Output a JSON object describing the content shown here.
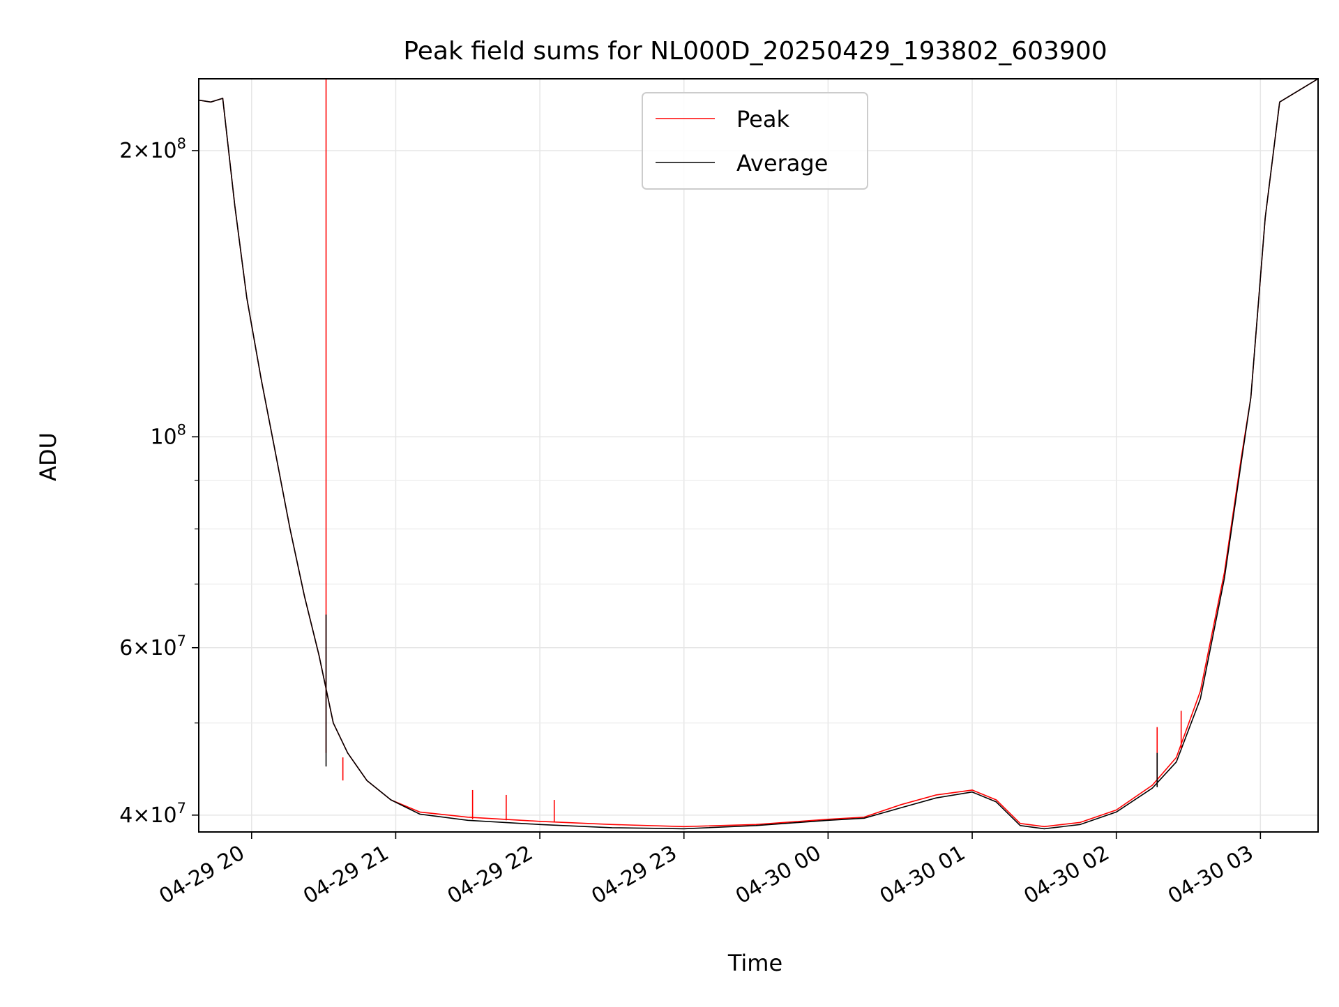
{
  "chart_data": {
    "type": "line",
    "title": "Peak field sums for NL000D_20250429_193802_603900",
    "xlabel": "Time",
    "ylabel": "ADU",
    "yscale": "log",
    "grid": true,
    "legend_position": "upper center",
    "xlim": [
      "2025-04-29 19:38",
      "2025-04-30 03:24"
    ],
    "ylim": [
      38400000,
      238000000
    ],
    "x_ticks": [
      {
        "t": "2025-04-29 20:00",
        "label": "04-29 20"
      },
      {
        "t": "2025-04-29 21:00",
        "label": "04-29 21"
      },
      {
        "t": "2025-04-29 22:00",
        "label": "04-29 22"
      },
      {
        "t": "2025-04-29 23:00",
        "label": "04-29 23"
      },
      {
        "t": "2025-04-30 00:00",
        "label": "04-30 00"
      },
      {
        "t": "2025-04-30 01:00",
        "label": "04-30 01"
      },
      {
        "t": "2025-04-30 02:00",
        "label": "04-30 02"
      },
      {
        "t": "2025-04-30 03:00",
        "label": "04-30 03"
      }
    ],
    "y_ticks": [
      {
        "v": 40000000,
        "mant": "4",
        "exp": "7"
      },
      {
        "v": 60000000,
        "mant": "6",
        "exp": "7"
      },
      {
        "v": 100000000,
        "mant": "",
        "exp": "8"
      },
      {
        "v": 200000000,
        "mant": "2",
        "exp": "8"
      }
    ],
    "y_minor_ticks": [
      50000000,
      70000000,
      80000000,
      90000000
    ],
    "series": [
      {
        "name": "Peak",
        "color": "#ff0000",
        "points": [
          [
            "2025-04-29 19:38",
            226000000
          ],
          [
            "2025-04-29 19:43",
            225000000
          ],
          [
            "2025-04-29 19:48",
            227000000
          ],
          [
            "2025-04-29 19:53",
            175000000
          ],
          [
            "2025-04-29 19:58",
            140000000
          ],
          [
            "2025-04-29 20:04",
            115000000
          ],
          [
            "2025-04-29 20:10",
            96000000
          ],
          [
            "2025-04-29 20:16",
            80000000
          ],
          [
            "2025-04-29 20:22",
            68000000
          ],
          [
            "2025-04-29 20:28",
            59000000
          ],
          [
            "2025-04-29 20:34",
            50000000
          ],
          [
            "2025-04-29 20:40",
            46500000
          ],
          [
            "2025-04-29 20:48",
            43500000
          ],
          [
            "2025-04-29 20:58",
            41500000
          ],
          [
            "2025-04-29 21:10",
            40300000
          ],
          [
            "2025-04-29 21:30",
            39800000
          ],
          [
            "2025-04-29 22:00",
            39400000
          ],
          [
            "2025-04-29 22:30",
            39100000
          ],
          [
            "2025-04-29 23:00",
            38900000
          ],
          [
            "2025-04-29 23:30",
            39100000
          ],
          [
            "2025-04-30 00:00",
            39600000
          ],
          [
            "2025-04-30 00:15",
            39800000
          ],
          [
            "2025-04-30 00:30",
            41000000
          ],
          [
            "2025-04-30 00:45",
            42000000
          ],
          [
            "2025-04-30 01:00",
            42500000
          ],
          [
            "2025-04-30 01:10",
            41500000
          ],
          [
            "2025-04-30 01:20",
            39200000
          ],
          [
            "2025-04-30 01:30",
            38900000
          ],
          [
            "2025-04-30 01:45",
            39300000
          ],
          [
            "2025-04-30 02:00",
            40500000
          ],
          [
            "2025-04-30 02:15",
            43000000
          ],
          [
            "2025-04-30 02:25",
            46000000
          ],
          [
            "2025-04-30 02:35",
            54000000
          ],
          [
            "2025-04-30 02:45",
            72000000
          ],
          [
            "2025-04-30 02:52",
            95000000
          ],
          [
            "2025-04-30 02:56",
            110000000
          ],
          [
            "2025-04-30 03:02",
            170000000
          ],
          [
            "2025-04-30 03:08",
            225000000
          ],
          [
            "2025-04-30 03:24",
            238000000
          ]
        ]
      },
      {
        "name": "Average",
        "color": "#000000",
        "points": [
          [
            "2025-04-29 19:38",
            226000000
          ],
          [
            "2025-04-29 19:43",
            225000000
          ],
          [
            "2025-04-29 19:48",
            227000000
          ],
          [
            "2025-04-29 19:53",
            175000000
          ],
          [
            "2025-04-29 19:58",
            140000000
          ],
          [
            "2025-04-29 20:04",
            115000000
          ],
          [
            "2025-04-29 20:10",
            96000000
          ],
          [
            "2025-04-29 20:16",
            80000000
          ],
          [
            "2025-04-29 20:22",
            68000000
          ],
          [
            "2025-04-29 20:28",
            59000000
          ],
          [
            "2025-04-29 20:34",
            50000000
          ],
          [
            "2025-04-29 20:40",
            46500000
          ],
          [
            "2025-04-29 20:48",
            43500000
          ],
          [
            "2025-04-29 20:58",
            41500000
          ],
          [
            "2025-04-29 21:10",
            40100000
          ],
          [
            "2025-04-29 21:30",
            39500000
          ],
          [
            "2025-04-29 22:00",
            39100000
          ],
          [
            "2025-04-29 22:30",
            38800000
          ],
          [
            "2025-04-29 23:00",
            38700000
          ],
          [
            "2025-04-29 23:30",
            39000000
          ],
          [
            "2025-04-30 00:00",
            39500000
          ],
          [
            "2025-04-30 00:15",
            39700000
          ],
          [
            "2025-04-30 00:30",
            40700000
          ],
          [
            "2025-04-30 00:45",
            41700000
          ],
          [
            "2025-04-30 01:00",
            42300000
          ],
          [
            "2025-04-30 01:10",
            41300000
          ],
          [
            "2025-04-30 01:20",
            39000000
          ],
          [
            "2025-04-30 01:30",
            38700000
          ],
          [
            "2025-04-30 01:45",
            39100000
          ],
          [
            "2025-04-30 02:00",
            40300000
          ],
          [
            "2025-04-30 02:15",
            42700000
          ],
          [
            "2025-04-30 02:25",
            45500000
          ],
          [
            "2025-04-30 02:35",
            53000000
          ],
          [
            "2025-04-30 02:45",
            71000000
          ],
          [
            "2025-04-30 02:52",
            94000000
          ],
          [
            "2025-04-30 02:56",
            110000000
          ],
          [
            "2025-04-30 03:02",
            170000000
          ],
          [
            "2025-04-30 03:08",
            225000000
          ],
          [
            "2025-04-30 03:24",
            238000000
          ]
        ]
      }
    ],
    "spikes": [
      {
        "series": "Peak",
        "t": "2025-04-29 20:31",
        "from": 46500000,
        "to": 238000000
      },
      {
        "series": "Average",
        "t": "2025-04-29 20:31",
        "from": 45000000,
        "to": 65000000
      },
      {
        "series": "Peak",
        "t": "2025-04-29 20:38",
        "from": 43500000,
        "to": 46000000
      },
      {
        "series": "Peak",
        "t": "2025-04-29 21:32",
        "from": 39600000,
        "to": 42500000
      },
      {
        "series": "Peak",
        "t": "2025-04-29 21:46",
        "from": 39500000,
        "to": 42000000
      },
      {
        "series": "Peak",
        "t": "2025-04-29 22:06",
        "from": 39300000,
        "to": 41500000
      },
      {
        "series": "Peak",
        "t": "2025-04-30 02:17",
        "from": 43000000,
        "to": 49500000
      },
      {
        "series": "Average",
        "t": "2025-04-30 02:17",
        "from": 42800000,
        "to": 46500000
      },
      {
        "series": "Peak",
        "t": "2025-04-30 02:27",
        "from": 47000000,
        "to": 51500000
      }
    ]
  },
  "legend": {
    "items": [
      {
        "label": "Peak",
        "color": "#ff0000"
      },
      {
        "label": "Average",
        "color": "#000000"
      }
    ]
  }
}
